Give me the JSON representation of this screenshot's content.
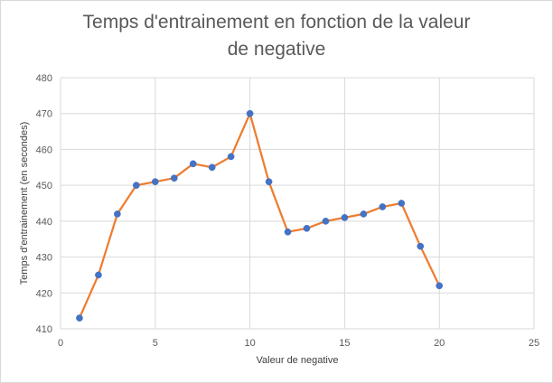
{
  "chart_data": {
    "type": "line",
    "title_line1": "Temps d'entrainement en fonction de la valeur",
    "title_line2": "de negative",
    "xlabel": "Valeur de negative",
    "ylabel": "Temps d'entrainement (en secondes)",
    "xlim": [
      0,
      25
    ],
    "ylim": [
      410,
      480
    ],
    "x_ticks": [
      0,
      5,
      10,
      15,
      20,
      25
    ],
    "y_ticks": [
      410,
      420,
      430,
      440,
      450,
      460,
      470,
      480
    ],
    "grid": true,
    "legend": "none",
    "series": [
      {
        "line_color": "#ED7D31",
        "marker_color": "#4472C4",
        "x": [
          1,
          2,
          3,
          4,
          5,
          6,
          7,
          8,
          9,
          10,
          11,
          12,
          13,
          14,
          15,
          16,
          17,
          18,
          19,
          20
        ],
        "y": [
          413,
          425,
          442,
          450,
          451,
          452,
          456,
          455,
          458,
          470,
          451,
          437,
          438,
          440,
          441,
          442,
          444,
          445,
          433,
          422
        ]
      }
    ]
  }
}
